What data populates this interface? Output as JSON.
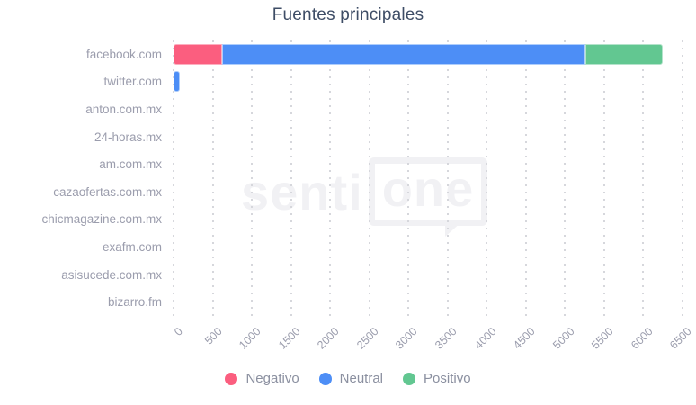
{
  "title": "Fuentes principales",
  "watermark": {
    "prefix": "senti",
    "boxed": "one"
  },
  "colors": {
    "negative": "#fb5e7f",
    "negative_border": "#fdaebf",
    "neutral": "#4d8ef6",
    "neutral_border": "#aecdfb",
    "positive": "#62c791",
    "positive_border": "#b4e3cb",
    "title_text": "#3e4d66",
    "axis_text": "#9b9dad",
    "legend_text": "#8b90a0",
    "gridline": "#d6d7dc",
    "watermark": "#f1f1f4",
    "background": "#ffffff"
  },
  "legend": [
    {
      "label": "Negativo",
      "color": "#fb5e7f"
    },
    {
      "label": "Neutral",
      "color": "#4d8ef6"
    },
    {
      "label": "Positivo",
      "color": "#62c791"
    }
  ],
  "chart_data": {
    "type": "bar",
    "orientation": "horizontal",
    "stacked": true,
    "title": "Fuentes principales",
    "categories": [
      "facebook.com",
      "twitter.com",
      "anton.com.mx",
      "24-horas.mx",
      "am.com.mx",
      "cazaofertas.com.mx",
      "chicmagazine.com.mx",
      "exafm.com",
      "asisucede.com.mx",
      "bizarro.fm"
    ],
    "series": [
      {
        "name": "Negativo",
        "color": "#fb5e7f",
        "border": "#fdaebf",
        "values": [
          620,
          0,
          0,
          0,
          0,
          0,
          0,
          0,
          0,
          0
        ]
      },
      {
        "name": "Neutral",
        "color": "#4d8ef6",
        "border": "#aecdfb",
        "values": [
          4640,
          80,
          0,
          0,
          0,
          0,
          0,
          0,
          0,
          0
        ]
      },
      {
        "name": "Positivo",
        "color": "#62c791",
        "border": "#b4e3cb",
        "values": [
          990,
          0,
          0,
          0,
          0,
          0,
          0,
          0,
          0,
          0
        ]
      }
    ],
    "xlim": [
      0,
      6500
    ],
    "xticks": [
      0,
      500,
      1000,
      1500,
      2000,
      2500,
      3000,
      3500,
      4000,
      4500,
      5000,
      5500,
      6000,
      6500
    ],
    "grid": "vertical-dotted",
    "legend_position": "bottom"
  }
}
